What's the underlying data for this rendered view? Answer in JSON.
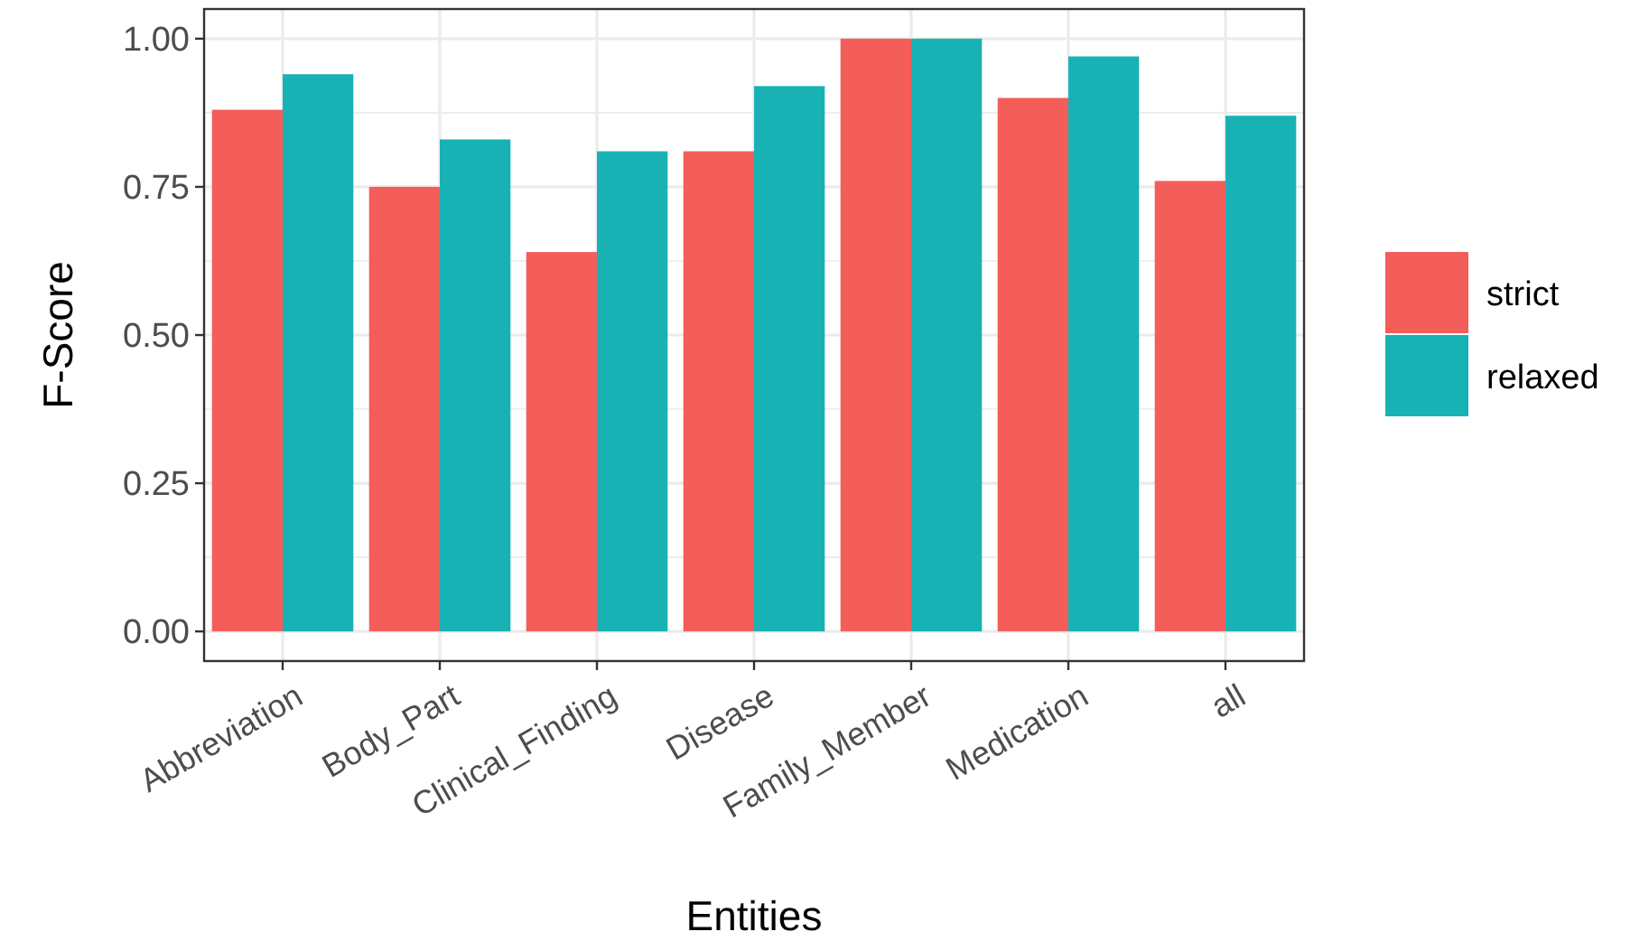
{
  "chart_data": {
    "type": "bar",
    "xlabel": "Entities",
    "ylabel": "F-Score",
    "categories": [
      "Abbreviation",
      "Body_Part",
      "Clinical_Finding",
      "Disease",
      "Family_Member",
      "Medication",
      "all"
    ],
    "series": [
      {
        "name": "strict",
        "color": "#f35e5a",
        "values": [
          0.88,
          0.75,
          0.64,
          0.81,
          1.0,
          0.9,
          0.76
        ]
      },
      {
        "name": "relaxed",
        "color": "#18b2b5",
        "values": [
          0.94,
          0.83,
          0.81,
          0.92,
          1.0,
          0.97,
          0.87
        ]
      }
    ],
    "ylim": [
      -0.05,
      1.05
    ],
    "yticks": [
      {
        "value": 0,
        "label": "0.00"
      },
      {
        "value": 0.25,
        "label": "0.25"
      },
      {
        "value": 0.5,
        "label": "0.50"
      },
      {
        "value": 0.75,
        "label": "0.75"
      },
      {
        "value": 1,
        "label": "1.00"
      }
    ],
    "grid": true,
    "legend": "right"
  }
}
